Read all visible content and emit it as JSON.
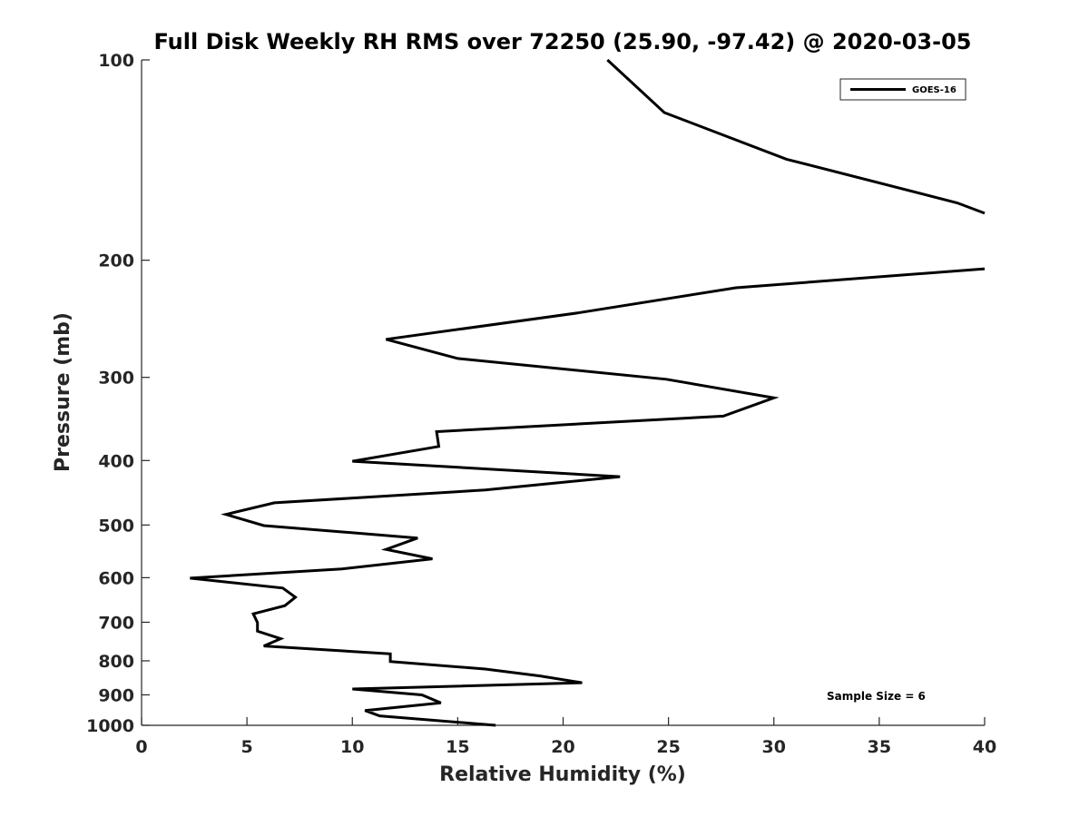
{
  "chart_data": {
    "type": "line",
    "title": "Full Disk Weekly RH RMS over 72250 (25.90, -97.42) @ 2020-03-05",
    "xlabel": "Relative Humidity (%)",
    "ylabel": "Pressure (mb)",
    "xlim": [
      0,
      40
    ],
    "ylim": [
      100,
      1000
    ],
    "y_scale": "log",
    "y_reversed": true,
    "grid": false,
    "x_ticks": [
      0,
      5,
      10,
      15,
      20,
      25,
      30,
      35,
      40
    ],
    "y_ticks": [
      100,
      200,
      300,
      400,
      500,
      600,
      700,
      800,
      900,
      1000
    ],
    "legend": {
      "location": "top-right",
      "entries": [
        "GOES-16"
      ]
    },
    "annotation": "Sample Size = 6",
    "series": [
      {
        "name": "GOES-16",
        "color": "#000000",
        "points": [
          [
            22.1,
            100
          ],
          [
            24.8,
            120
          ],
          [
            30.6,
            141
          ],
          [
            38.7,
            164
          ],
          [
            40,
            170
          ],
          [
            null,
            null
          ],
          [
            40,
            206
          ],
          [
            28.2,
            220
          ],
          [
            20.7,
            240
          ],
          [
            11.6,
            263
          ],
          [
            15.0,
            281
          ],
          [
            24.9,
            302
          ],
          [
            30.0,
            322
          ],
          [
            27.6,
            343
          ],
          [
            14.0,
            362
          ],
          [
            14.1,
            381
          ],
          [
            10.0,
            401
          ],
          [
            22.7,
            423
          ],
          [
            16.3,
            443
          ],
          [
            6.3,
            463
          ],
          [
            4.0,
            482
          ],
          [
            5.8,
            501
          ],
          [
            13.1,
            523
          ],
          [
            11.6,
            544
          ],
          [
            13.8,
            562
          ],
          [
            9.5,
            582
          ],
          [
            2.3,
            601
          ],
          [
            6.7,
            622
          ],
          [
            7.3,
            642
          ],
          [
            6.8,
            661
          ],
          [
            5.3,
            680
          ],
          [
            5.5,
            701
          ],
          [
            5.5,
            722
          ],
          [
            6.6,
            741
          ],
          [
            5.8,
            760
          ],
          [
            11.8,
            781
          ],
          [
            11.8,
            802
          ],
          [
            16.3,
            823
          ],
          [
            18.9,
            843
          ],
          [
            20.9,
            863
          ],
          [
            10.0,
            882
          ],
          [
            13.3,
            900
          ],
          [
            14.2,
            925
          ],
          [
            10.6,
            950
          ],
          [
            11.3,
            968
          ],
          [
            16.8,
            1000
          ]
        ]
      }
    ]
  }
}
